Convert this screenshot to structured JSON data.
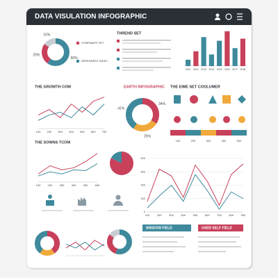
{
  "texts": {
    "title": "DATA VISULATION INFOGRAPHIC",
    "legend": [
      "COMPANIES SET",
      "DEPENDENT INDEX"
    ],
    "trend_title": "THREND SET",
    "icon_title": "THE EIME SET COOLUMER",
    "icon_labels": [
      "100",
      "200",
      "300",
      "400",
      "500"
    ],
    "box1": "WINDOW FIELD",
    "box2": "USER SELF FIELD"
  },
  "chart_data": [
    {
      "type": "donut",
      "values": [
        60,
        25,
        15
      ],
      "value_labels": [
        "60%",
        "25%",
        "15%"
      ],
      "colors": [
        "#3e8a9c",
        "#c8405a",
        "#c9cdd2"
      ]
    },
    {
      "type": "bar",
      "categories": [
        "2011",
        "2012",
        "2013",
        "2014",
        "2015",
        "2016",
        "2017",
        "2018"
      ],
      "values": [
        12,
        28,
        55,
        22,
        48,
        66,
        34,
        52
      ],
      "colors": [
        "#3e8a9c",
        "#c8405a",
        "#3e8a9c",
        "#3e8a9c",
        "#3e8a9c",
        "#c8405a",
        "#3e8a9c",
        "#c8405a"
      ],
      "ylim": [
        0,
        70
      ]
    },
    {
      "type": "line",
      "title": "THE GROWTH COM",
      "categories": [
        "100",
        "200",
        "300",
        "400",
        "500",
        "600",
        "700"
      ],
      "ylim": [
        0,
        60
      ],
      "series": [
        {
          "color": "#c8405a",
          "values": [
            25,
            35,
            20,
            45,
            30,
            50,
            58
          ]
        },
        {
          "color": "#3e8a9c",
          "values": [
            15,
            25,
            30,
            20,
            40,
            25,
            45
          ]
        }
      ]
    },
    {
      "type": "donut",
      "title": "EARTH INFOGRAPHIC",
      "values": [
        34,
        25,
        41
      ],
      "value_labels": [
        "34%",
        "25%",
        "41%"
      ],
      "colors": [
        "#c8405a",
        "#f0a93b",
        "#3e8a9c"
      ]
    },
    {
      "type": "line",
      "title": "THE SOWNS TCOM",
      "categories": [
        "100",
        "200",
        "300",
        "400",
        "500",
        "600"
      ],
      "ylim": [
        0,
        80
      ],
      "series": [
        {
          "color": "#c8405a",
          "values": [
            20,
            40,
            30,
            35,
            50,
            70
          ]
        },
        {
          "color": "#3e8a9c",
          "values": [
            15,
            25,
            20,
            30,
            28,
            45
          ]
        }
      ]
    },
    {
      "type": "pie",
      "values": [
        82,
        18
      ],
      "colors": [
        "#c8405a",
        "#3e8a9c"
      ]
    },
    {
      "type": "line",
      "categories": [
        "100",
        "200",
        "300",
        "400",
        "500",
        "600",
        "700",
        "800",
        "900"
      ],
      "ylim": [
        0,
        400
      ],
      "yticks": [
        0,
        100,
        200,
        300,
        400
      ],
      "series": [
        {
          "color": "#c8405a",
          "values": [
            80,
            320,
            270,
            110,
            350,
            230,
            50,
            280,
            360
          ]
        },
        {
          "color": "#3e8a9c",
          "values": [
            30,
            120,
            200,
            80,
            280,
            160,
            20,
            150,
            100
          ]
        }
      ]
    },
    {
      "type": "donut",
      "values": [
        40,
        20,
        40
      ],
      "colors": [
        "#c8405a",
        "#f0a93b",
        "#3e8a9c"
      ]
    },
    {
      "type": "line",
      "ylim": [
        0,
        50
      ],
      "series": [
        {
          "color": "#c8405a",
          "values": [
            20,
            35,
            15,
            40,
            25
          ]
        },
        {
          "color": "#3e8a9c",
          "values": [
            30,
            20,
            35,
            15,
            30
          ]
        }
      ]
    },
    {
      "type": "donut",
      "values": [
        55,
        30,
        15
      ],
      "colors": [
        "#3e8a9c",
        "#c8405a",
        "#c9cdd2"
      ]
    }
  ]
}
